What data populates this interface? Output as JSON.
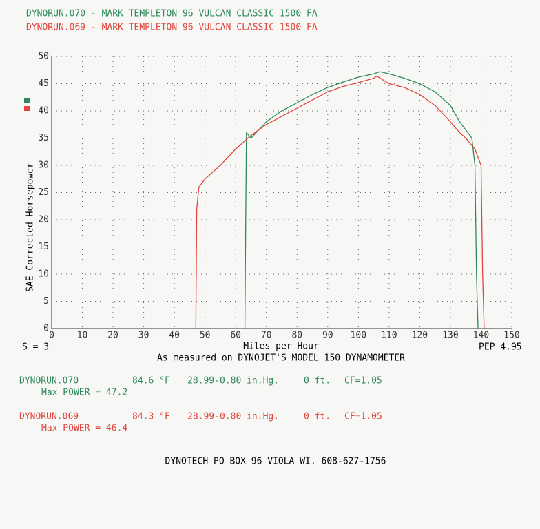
{
  "chart_data": {
    "type": "line",
    "x_label": "Miles per Hour",
    "y_label": "SAE Corrected Horsepower",
    "smoothing": "S = 3",
    "pep": "PEP 4.95",
    "subtitle": "As measured on DYNOJET'S MODEL 150 DYNAMOMETER",
    "footer": "DYNOTECH PO BOX 96 VIOLA WI.   608-627-1756",
    "xlim": [
      0,
      150
    ],
    "ylim": [
      0,
      50
    ],
    "xticks": [
      0,
      10,
      20,
      30,
      40,
      50,
      60,
      70,
      80,
      90,
      100,
      110,
      120,
      130,
      140,
      150
    ],
    "yticks": [
      0,
      5,
      10,
      15,
      20,
      25,
      30,
      35,
      40,
      45,
      50
    ],
    "grid": true,
    "series": [
      {
        "name": "DYNORUN.070 - MARK TEMPLETON 96 VULCAN CLASSIC 1500 FA",
        "color": "#2e8a5a",
        "x": [
          63,
          63.5,
          65,
          70,
          75,
          80,
          85,
          90,
          95,
          100,
          105,
          107,
          110,
          115,
          120,
          125,
          130,
          133,
          135,
          137,
          138,
          138.5,
          139
        ],
        "values": [
          0,
          36,
          35,
          38,
          40,
          41.5,
          43,
          44.3,
          45.3,
          46.2,
          46.8,
          47.2,
          46.8,
          46,
          45,
          43.5,
          41,
          38,
          36.5,
          35,
          30,
          10,
          0
        ]
      },
      {
        "name": "DYNORUN.069 - MARK TEMPLETON 96 VULCAN CLASSIC 1500 FA",
        "color": "#e2453c",
        "x": [
          47,
          47.3,
          48,
          50,
          55,
          60,
          65,
          70,
          75,
          80,
          85,
          90,
          95,
          100,
          105,
          106,
          110,
          115,
          120,
          125,
          130,
          133,
          135,
          138,
          140,
          140.5,
          141
        ],
        "values": [
          0,
          22,
          26,
          27.5,
          30,
          33,
          35.5,
          37.5,
          39,
          40.5,
          42,
          43.5,
          44.5,
          45.2,
          46,
          46.4,
          45,
          44.3,
          43,
          41,
          38,
          36,
          35,
          33,
          30,
          10,
          0
        ]
      }
    ],
    "run_info": [
      {
        "run": "DYNORUN.070",
        "temp": "84.6 °F",
        "pressure": "28.99-0.80 in.Hg.",
        "altitude": "0 ft.",
        "cf": "CF=1.05",
        "max_power": "Max POWER = 47.2"
      },
      {
        "run": "DYNORUN.069",
        "temp": "84.3 °F",
        "pressure": "28.99-0.80 in.Hg.",
        "altitude": "0 ft.",
        "cf": "CF=1.05",
        "max_power": "Max POWER = 46.4"
      }
    ]
  }
}
